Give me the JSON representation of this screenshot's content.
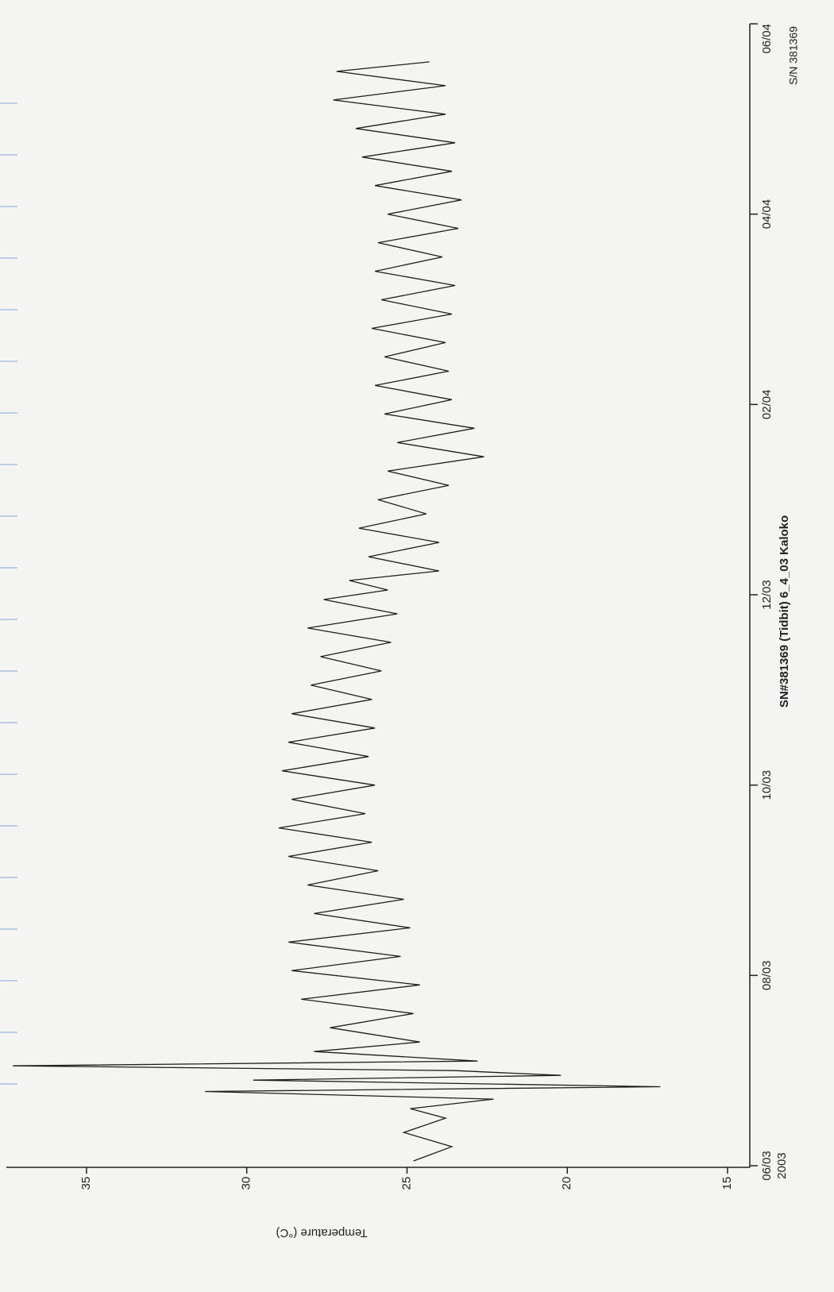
{
  "chart_data": {
    "type": "line",
    "title": "SN#381369 (Tidbit) 6_4_03 Kaloko",
    "serial_label": "S/N 381369",
    "y_label": "Temperature (°C)",
    "x_year_label": "2003",
    "xlim": [
      0,
      12
    ],
    "xticks": [
      {
        "value": 0,
        "label": "06/03"
      },
      {
        "value": 2,
        "label": "08/03"
      },
      {
        "value": 4,
        "label": "10/03"
      },
      {
        "value": 6,
        "label": "12/03"
      },
      {
        "value": 8,
        "label": "02/04"
      },
      {
        "value": 10,
        "label": "04/04"
      },
      {
        "value": 12,
        "label": "06/04"
      }
    ],
    "ylim": [
      15,
      37.5
    ],
    "yticks": [
      15,
      20,
      25,
      30,
      35
    ],
    "color": "#1e1e1e",
    "x": [
      0.05,
      0.2,
      0.35,
      0.5,
      0.6,
      0.7,
      0.78,
      0.83,
      0.9,
      0.95,
      1.0,
      1.05,
      1.1,
      1.2,
      1.3,
      1.45,
      1.6,
      1.75,
      1.9,
      2.05,
      2.2,
      2.35,
      2.5,
      2.65,
      2.8,
      2.95,
      3.1,
      3.25,
      3.4,
      3.55,
      3.7,
      3.85,
      4.0,
      4.15,
      4.3,
      4.45,
      4.6,
      4.75,
      4.9,
      5.05,
      5.2,
      5.35,
      5.5,
      5.65,
      5.8,
      5.95,
      6.05,
      6.15,
      6.25,
      6.4,
      6.55,
      6.7,
      6.85,
      7.0,
      7.15,
      7.3,
      7.45,
      7.6,
      7.75,
      7.9,
      8.05,
      8.2,
      8.35,
      8.5,
      8.65,
      8.8,
      8.95,
      9.1,
      9.25,
      9.4,
      9.55,
      9.7,
      9.85,
      10.0,
      10.15,
      10.3,
      10.45,
      10.6,
      10.75,
      10.9,
      11.05,
      11.2,
      11.35,
      11.5,
      11.6
    ],
    "values": [
      24.8,
      23.6,
      25.1,
      23.8,
      24.9,
      22.3,
      31.3,
      17.1,
      29.8,
      20.2,
      23.5,
      37.3,
      22.8,
      27.9,
      24.6,
      27.4,
      24.8,
      28.3,
      24.6,
      28.6,
      25.2,
      28.7,
      24.9,
      27.9,
      25.1,
      28.1,
      25.9,
      28.7,
      26.1,
      29.0,
      26.3,
      28.6,
      26.0,
      28.9,
      26.2,
      28.7,
      26.0,
      28.6,
      26.1,
      28.0,
      25.8,
      27.7,
      25.5,
      28.1,
      25.3,
      27.6,
      25.6,
      26.8,
      24.0,
      26.2,
      24.0,
      26.5,
      24.4,
      25.9,
      23.7,
      25.6,
      22.6,
      25.3,
      22.9,
      25.7,
      23.6,
      26.0,
      23.7,
      25.7,
      23.8,
      26.1,
      23.6,
      25.8,
      23.5,
      26.0,
      23.9,
      25.9,
      23.4,
      25.6,
      23.3,
      26.0,
      23.6,
      26.4,
      23.5,
      26.6,
      23.8,
      27.3,
      23.8,
      27.2,
      24.3
    ]
  }
}
